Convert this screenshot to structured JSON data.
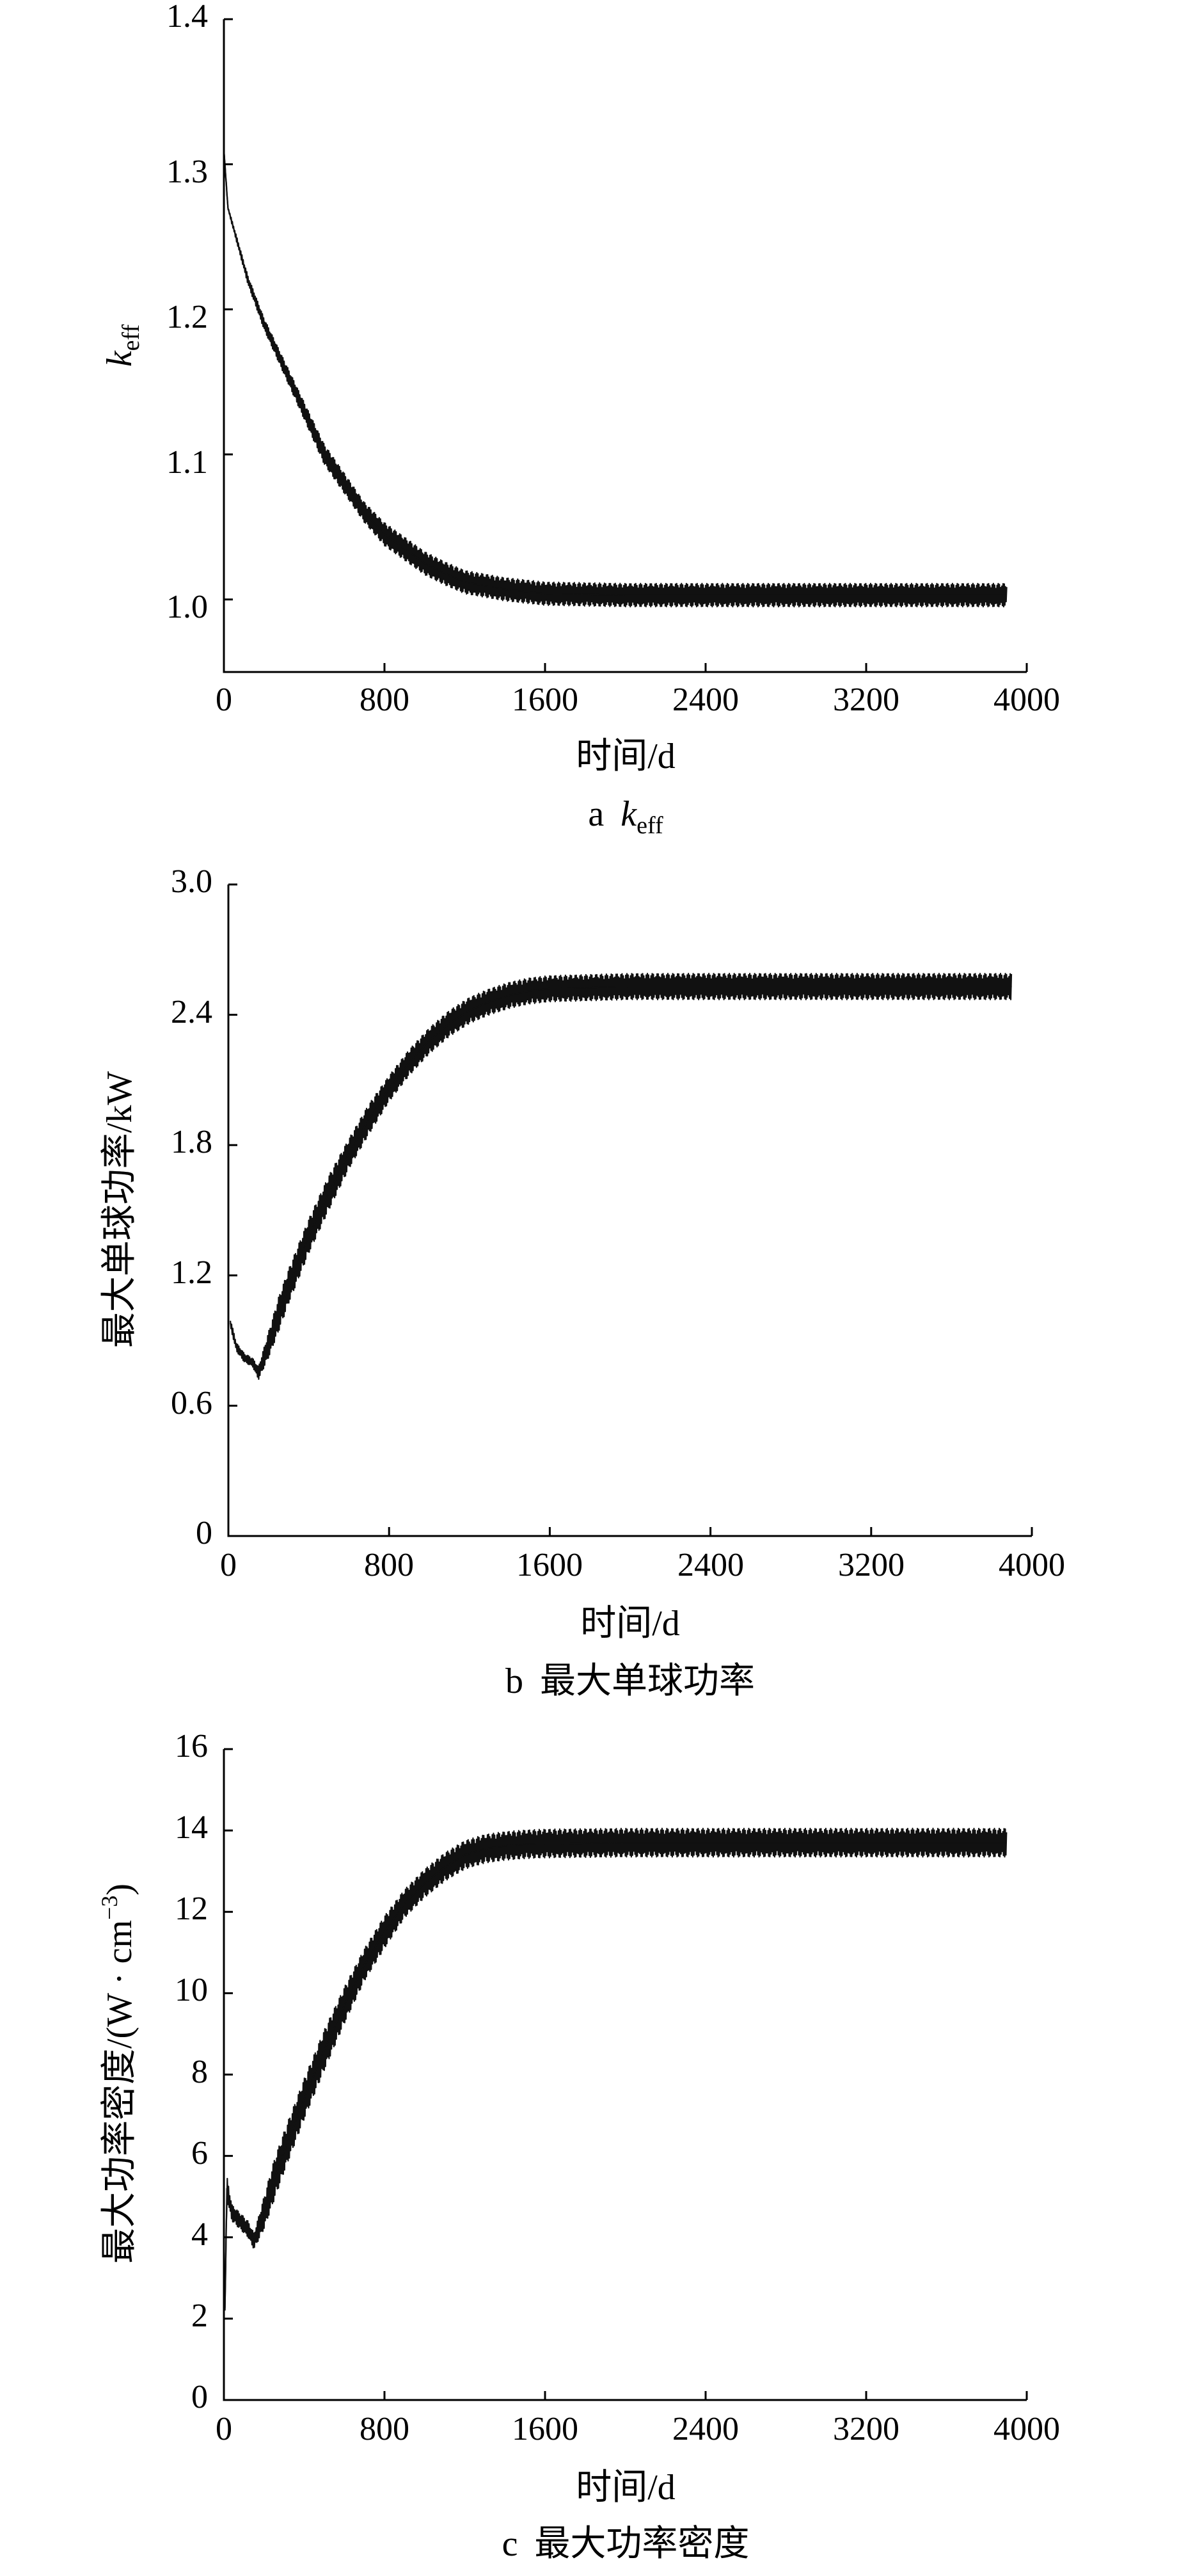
{
  "figure": {
    "panels": [
      {
        "caption": {
          "letter": "a",
          "text": "k",
          "sub": "eff"
        },
        "ylabel": {
          "text": "k",
          "sub": "eff"
        },
        "xlabel": "时间/d",
        "xticks": [
          "0",
          "800",
          "1600",
          "2400",
          "3200",
          "4000"
        ],
        "yticks": [
          "1.0",
          "1.1",
          "1.2",
          "1.3",
          "1.4"
        ]
      },
      {
        "caption": {
          "letter": "b",
          "text": "最大单球功率"
        },
        "ylabel": {
          "text": "最大单球功率/kW"
        },
        "xlabel": "时间/d",
        "xticks": [
          "0",
          "800",
          "1600",
          "2400",
          "3200",
          "4000"
        ],
        "yticks": [
          "0",
          "0.6",
          "1.2",
          "1.8",
          "2.4",
          "3.0"
        ]
      },
      {
        "caption": {
          "letter": "c",
          "text": "最大功率密度"
        },
        "ylabel": {
          "text": "最大功率密度/(W · cm",
          "sup": "−3",
          "tail": ")"
        },
        "xlabel": "时间/d",
        "xticks": [
          "0",
          "800",
          "1600",
          "2400",
          "3200",
          "4000"
        ],
        "yticks": [
          "0",
          "2",
          "4",
          "6",
          "8",
          "10",
          "12",
          "14",
          "16"
        ]
      }
    ]
  },
  "chart_data": [
    {
      "type": "line",
      "title": "",
      "xlabel": "时间/d",
      "ylabel": "keff",
      "xlim": [
        0,
        4000
      ],
      "ylim": [
        0.95,
        1.4
      ],
      "x_ticks": [
        0,
        800,
        1600,
        2400,
        3200,
        4000
      ],
      "y_ticks": [
        1.0,
        1.1,
        1.2,
        1.3,
        1.4
      ],
      "grid": false,
      "series": [
        {
          "x": [
            0,
            20,
            60,
            120,
            200,
            300,
            400,
            500,
            600,
            700,
            800,
            900,
            1000,
            1100,
            1200,
            1400,
            1600,
            2000,
            2400,
            2800,
            3200,
            3600,
            3900
          ],
          "y": [
            1.31,
            1.27,
            1.25,
            1.22,
            1.19,
            1.16,
            1.13,
            1.1,
            1.08,
            1.06,
            1.045,
            1.035,
            1.025,
            1.018,
            1.012,
            1.007,
            1.004,
            1.003,
            1.003,
            1.003,
            1.003,
            1.003,
            1.003
          ],
          "band_halfwidth": [
            0.001,
            0.001,
            0.002,
            0.003,
            0.004,
            0.005,
            0.006,
            0.007,
            0.007,
            0.007,
            0.008,
            0.008,
            0.008,
            0.008,
            0.008,
            0.008,
            0.008,
            0.008,
            0.008,
            0.008,
            0.008,
            0.008,
            0.008
          ]
        }
      ]
    },
    {
      "type": "line",
      "title": "",
      "xlabel": "时间/d",
      "ylabel": "最大单球功率/kW",
      "xlim": [
        0,
        4000
      ],
      "ylim": [
        0,
        3.0
      ],
      "x_ticks": [
        0,
        800,
        1600,
        2400,
        3200,
        4000
      ],
      "y_ticks": [
        0,
        0.6,
        1.2,
        1.8,
        2.4,
        3.0
      ],
      "grid": false,
      "series": [
        {
          "x": [
            10,
            40,
            80,
            120,
            150,
            200,
            250,
            300,
            400,
            500,
            600,
            700,
            800,
            900,
            1000,
            1100,
            1200,
            1300,
            1400,
            1500,
            1600,
            2000,
            2400,
            2800,
            3200,
            3600,
            3900
          ],
          "y": [
            0.98,
            0.87,
            0.82,
            0.8,
            0.75,
            0.88,
            1.02,
            1.15,
            1.38,
            1.58,
            1.76,
            1.92,
            2.06,
            2.18,
            2.28,
            2.36,
            2.42,
            2.46,
            2.49,
            2.51,
            2.52,
            2.53,
            2.53,
            2.53,
            2.53,
            2.53,
            2.53
          ],
          "band_halfwidth": [
            0.02,
            0.02,
            0.02,
            0.02,
            0.03,
            0.06,
            0.08,
            0.08,
            0.08,
            0.08,
            0.07,
            0.07,
            0.06,
            0.06,
            0.06,
            0.06,
            0.06,
            0.06,
            0.06,
            0.06,
            0.06,
            0.06,
            0.06,
            0.06,
            0.06,
            0.06,
            0.06
          ]
        }
      ]
    },
    {
      "type": "line",
      "title": "",
      "xlabel": "时间/d",
      "ylabel": "最大功率密度/(W · cm−3)",
      "xlim": [
        0,
        4000
      ],
      "ylim": [
        0,
        16
      ],
      "x_ticks": [
        0,
        800,
        1600,
        2400,
        3200,
        4000
      ],
      "y_ticks": [
        0,
        2,
        4,
        6,
        8,
        10,
        12,
        14,
        16
      ],
      "grid": false,
      "series": [
        {
          "x": [
            5,
            15,
            40,
            80,
            120,
            150,
            200,
            250,
            300,
            400,
            500,
            600,
            700,
            800,
            900,
            1000,
            1100,
            1200,
            1300,
            1400,
            1500,
            1600,
            2000,
            2400,
            2800,
            3200,
            3600,
            3900
          ],
          "y": [
            2.2,
            5.2,
            4.6,
            4.4,
            4.2,
            3.9,
            4.6,
            5.4,
            6.1,
            7.4,
            8.6,
            9.7,
            10.7,
            11.5,
            12.2,
            12.7,
            13.1,
            13.4,
            13.55,
            13.62,
            13.66,
            13.68,
            13.7,
            13.7,
            13.7,
            13.7,
            13.7,
            13.7
          ],
          "band_halfwidth": [
            0.1,
            0.3,
            0.2,
            0.2,
            0.2,
            0.2,
            0.4,
            0.5,
            0.5,
            0.5,
            0.5,
            0.45,
            0.4,
            0.4,
            0.35,
            0.35,
            0.35,
            0.35,
            0.35,
            0.35,
            0.35,
            0.35,
            0.35,
            0.35,
            0.35,
            0.35,
            0.35,
            0.35
          ]
        }
      ]
    }
  ]
}
